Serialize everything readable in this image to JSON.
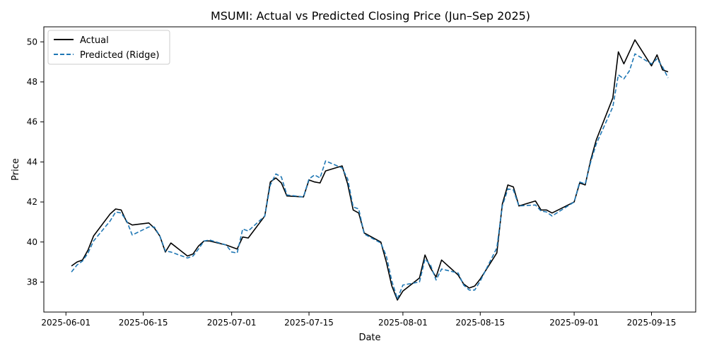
{
  "chart_data": {
    "type": "line",
    "title": "MSUMI: Actual vs Predicted Closing Price (Jun–Sep 2025)",
    "xlabel": "Date",
    "ylabel": "Price",
    "xlim": [
      "2025-05-28",
      "2025-09-23"
    ],
    "ylim": [
      36.5,
      50.75
    ],
    "x_ticks": [
      "2025-06-01",
      "2025-06-15",
      "2025-07-01",
      "2025-07-15",
      "2025-08-01",
      "2025-08-15",
      "2025-09-01",
      "2025-09-15"
    ],
    "y_ticks": [
      38,
      40,
      42,
      44,
      46,
      48,
      50
    ],
    "grid": false,
    "legend": "top-left",
    "series": [
      {
        "name": "Actual",
        "color": "#000000",
        "style": "solid",
        "points": [
          [
            "2025-06-02",
            38.8
          ],
          [
            "2025-06-03",
            39.0
          ],
          [
            "2025-06-04",
            39.1
          ],
          [
            "2025-06-05",
            39.6
          ],
          [
            "2025-06-06",
            40.3
          ],
          [
            "2025-06-09",
            41.4
          ],
          [
            "2025-06-10",
            41.65
          ],
          [
            "2025-06-11",
            41.6
          ],
          [
            "2025-06-12",
            41.0
          ],
          [
            "2025-06-13",
            40.85
          ],
          [
            "2025-06-16",
            40.95
          ],
          [
            "2025-06-17",
            40.7
          ],
          [
            "2025-06-18",
            40.3
          ],
          [
            "2025-06-19",
            39.5
          ],
          [
            "2025-06-20",
            39.95
          ],
          [
            "2025-06-23",
            39.3
          ],
          [
            "2025-06-24",
            39.4
          ],
          [
            "2025-06-25",
            39.8
          ],
          [
            "2025-06-26",
            40.05
          ],
          [
            "2025-06-27",
            40.05
          ],
          [
            "2025-06-30",
            39.85
          ],
          [
            "2025-07-01",
            39.75
          ],
          [
            "2025-07-02",
            39.65
          ],
          [
            "2025-07-03",
            40.25
          ],
          [
            "2025-07-04",
            40.2
          ],
          [
            "2025-07-07",
            41.3
          ],
          [
            "2025-07-08",
            43.0
          ],
          [
            "2025-07-09",
            43.2
          ],
          [
            "2025-07-10",
            42.95
          ],
          [
            "2025-07-11",
            42.3
          ],
          [
            "2025-07-14",
            42.25
          ],
          [
            "2025-07-15",
            43.1
          ],
          [
            "2025-07-16",
            43.0
          ],
          [
            "2025-07-17",
            42.95
          ],
          [
            "2025-07-18",
            43.55
          ],
          [
            "2025-07-21",
            43.8
          ],
          [
            "2025-07-22",
            42.9
          ],
          [
            "2025-07-23",
            41.6
          ],
          [
            "2025-07-24",
            41.45
          ],
          [
            "2025-07-25",
            40.45
          ],
          [
            "2025-07-28",
            40.0
          ],
          [
            "2025-07-29",
            39.0
          ],
          [
            "2025-07-30",
            37.8
          ],
          [
            "2025-07-31",
            37.1
          ],
          [
            "2025-08-01",
            37.55
          ],
          [
            "2025-08-04",
            38.2
          ],
          [
            "2025-08-05",
            39.35
          ],
          [
            "2025-08-06",
            38.7
          ],
          [
            "2025-08-07",
            38.25
          ],
          [
            "2025-08-08",
            39.1
          ],
          [
            "2025-08-11",
            38.35
          ],
          [
            "2025-08-12",
            37.9
          ],
          [
            "2025-08-13",
            37.7
          ],
          [
            "2025-08-14",
            37.8
          ],
          [
            "2025-08-15",
            38.15
          ],
          [
            "2025-08-18",
            39.45
          ],
          [
            "2025-08-19",
            41.9
          ],
          [
            "2025-08-20",
            42.85
          ],
          [
            "2025-08-21",
            42.75
          ],
          [
            "2025-08-22",
            41.8
          ],
          [
            "2025-08-25",
            42.05
          ],
          [
            "2025-08-26",
            41.6
          ],
          [
            "2025-08-27",
            41.6
          ],
          [
            "2025-08-28",
            41.45
          ],
          [
            "2025-09-01",
            42.0
          ],
          [
            "2025-09-02",
            42.95
          ],
          [
            "2025-09-03",
            42.85
          ],
          [
            "2025-09-04",
            44.1
          ],
          [
            "2025-09-05",
            45.1
          ],
          [
            "2025-09-08",
            47.2
          ],
          [
            "2025-09-09",
            49.5
          ],
          [
            "2025-09-10",
            48.9
          ],
          [
            "2025-09-12",
            50.1
          ],
          [
            "2025-09-15",
            48.8
          ],
          [
            "2025-09-16",
            49.35
          ],
          [
            "2025-09-17",
            48.6
          ],
          [
            "2025-09-18",
            48.5
          ]
        ]
      },
      {
        "name": "Predicted (Ridge)",
        "color": "#1f77b4",
        "style": "dashed",
        "points": [
          [
            "2025-06-02",
            38.5
          ],
          [
            "2025-06-03",
            38.85
          ],
          [
            "2025-06-04",
            39.05
          ],
          [
            "2025-06-05",
            39.45
          ],
          [
            "2025-06-06",
            40.05
          ],
          [
            "2025-06-09",
            41.05
          ],
          [
            "2025-06-10",
            41.5
          ],
          [
            "2025-06-11",
            41.45
          ],
          [
            "2025-06-12",
            41.05
          ],
          [
            "2025-06-13",
            40.35
          ],
          [
            "2025-06-16",
            40.75
          ],
          [
            "2025-06-17",
            40.75
          ],
          [
            "2025-06-18",
            40.3
          ],
          [
            "2025-06-19",
            39.55
          ],
          [
            "2025-06-20",
            39.5
          ],
          [
            "2025-06-23",
            39.2
          ],
          [
            "2025-06-24",
            39.3
          ],
          [
            "2025-06-25",
            39.65
          ],
          [
            "2025-06-26",
            40.05
          ],
          [
            "2025-06-27",
            40.1
          ],
          [
            "2025-06-30",
            39.85
          ],
          [
            "2025-07-01",
            39.5
          ],
          [
            "2025-07-02",
            39.45
          ],
          [
            "2025-07-03",
            40.65
          ],
          [
            "2025-07-04",
            40.55
          ],
          [
            "2025-07-07",
            41.3
          ],
          [
            "2025-07-08",
            42.85
          ],
          [
            "2025-07-09",
            43.4
          ],
          [
            "2025-07-10",
            43.25
          ],
          [
            "2025-07-11",
            42.35
          ],
          [
            "2025-07-14",
            42.25
          ],
          [
            "2025-07-15",
            43.15
          ],
          [
            "2025-07-16",
            43.35
          ],
          [
            "2025-07-17",
            43.2
          ],
          [
            "2025-07-18",
            44.05
          ],
          [
            "2025-07-21",
            43.7
          ],
          [
            "2025-07-22",
            43.15
          ],
          [
            "2025-07-23",
            41.75
          ],
          [
            "2025-07-24",
            41.65
          ],
          [
            "2025-07-25",
            40.4
          ],
          [
            "2025-07-28",
            39.95
          ],
          [
            "2025-07-29",
            39.3
          ],
          [
            "2025-07-30",
            38.05
          ],
          [
            "2025-07-31",
            37.15
          ],
          [
            "2025-08-01",
            37.85
          ],
          [
            "2025-08-04",
            38.0
          ],
          [
            "2025-08-05",
            39.15
          ],
          [
            "2025-08-06",
            38.85
          ],
          [
            "2025-08-07",
            38.1
          ],
          [
            "2025-08-08",
            38.65
          ],
          [
            "2025-08-11",
            38.45
          ],
          [
            "2025-08-12",
            37.85
          ],
          [
            "2025-08-13",
            37.6
          ],
          [
            "2025-08-14",
            37.6
          ],
          [
            "2025-08-15",
            38.05
          ],
          [
            "2025-08-18",
            39.7
          ],
          [
            "2025-08-19",
            41.8
          ],
          [
            "2025-08-20",
            42.65
          ],
          [
            "2025-08-21",
            42.6
          ],
          [
            "2025-08-22",
            41.8
          ],
          [
            "2025-08-25",
            41.85
          ],
          [
            "2025-08-26",
            41.55
          ],
          [
            "2025-08-27",
            41.5
          ],
          [
            "2025-08-28",
            41.3
          ],
          [
            "2025-09-01",
            42.0
          ],
          [
            "2025-09-02",
            43.0
          ],
          [
            "2025-09-03",
            42.9
          ],
          [
            "2025-09-04",
            44.0
          ],
          [
            "2025-09-05",
            44.9
          ],
          [
            "2025-09-08",
            46.75
          ],
          [
            "2025-09-09",
            48.35
          ],
          [
            "2025-09-10",
            48.15
          ],
          [
            "2025-09-11",
            48.55
          ],
          [
            "2025-09-12",
            49.4
          ],
          [
            "2025-09-15",
            48.9
          ],
          [
            "2025-09-16",
            49.15
          ],
          [
            "2025-09-17",
            48.75
          ],
          [
            "2025-09-18",
            48.2
          ]
        ]
      }
    ]
  }
}
